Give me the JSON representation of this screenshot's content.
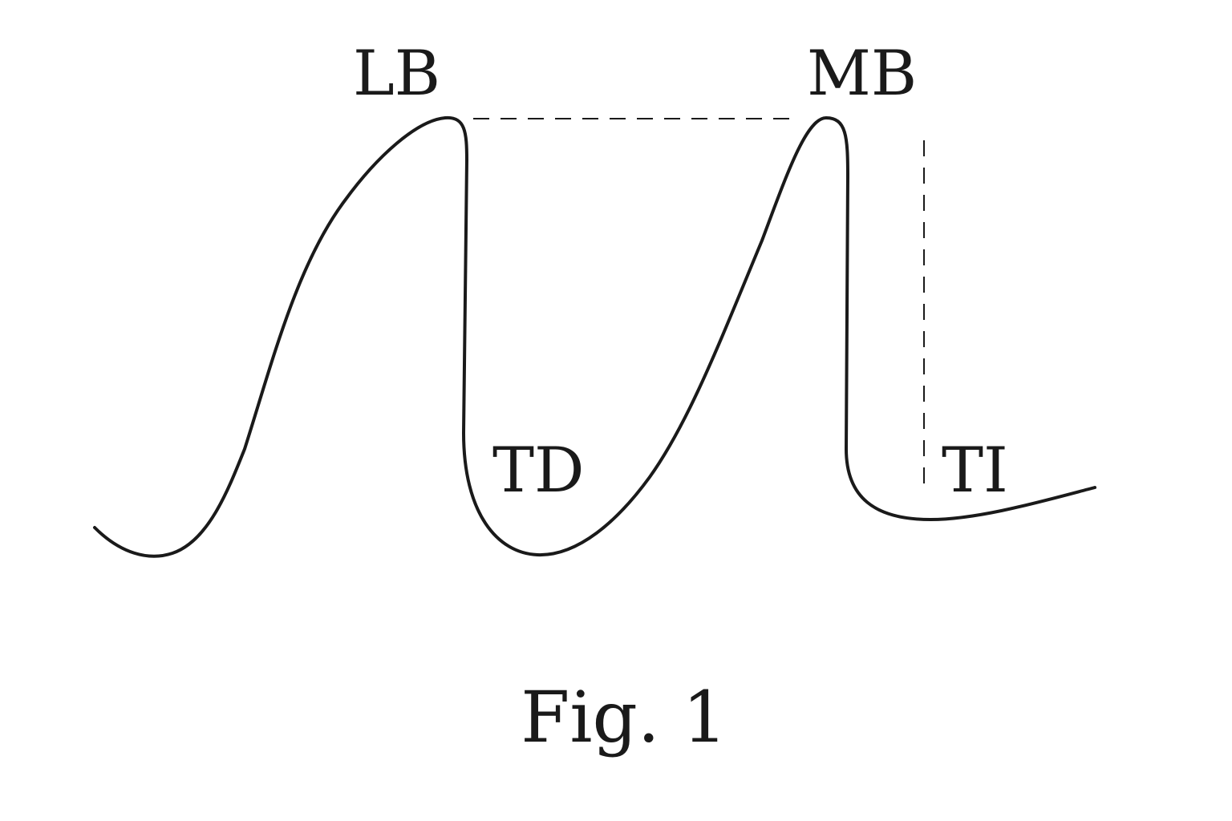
{
  "labels": {
    "lb": "LB",
    "mb": "MB",
    "td": "TD",
    "ti": "TI"
  },
  "caption": "Fig. 1"
}
